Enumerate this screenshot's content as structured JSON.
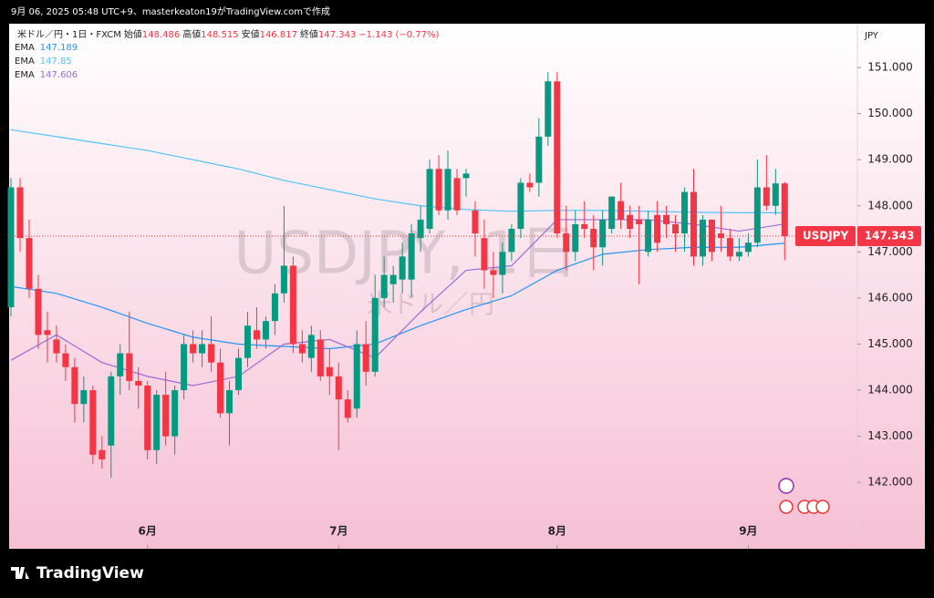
{
  "chart_data": {
    "type": "candlestick",
    "credit": "9月 06, 2025 05:48 UTC+9、masterkeaton19がTradingView.comで作成",
    "brand": "TradingView",
    "axis_unit": "JPY",
    "watermark": "USDJPY, 1日",
    "watermark_sub": "米ドル／円",
    "symbol_tag": "USDJPY",
    "legend": {
      "symbol": "米ドル／円・1日・FXCM",
      "fields": [
        {
          "label": "始値",
          "value": 148.486
        },
        {
          "label": "高値",
          "value": 148.515
        },
        {
          "label": "安値",
          "value": 146.817
        },
        {
          "label": "終値",
          "value": 147.343
        }
      ],
      "change": "−1.143 (−0.77%)"
    },
    "up_color": "#089981",
    "down_color": "#f23645",
    "open": [
      145.8,
      148.4,
      147.3,
      146.2,
      145.3,
      145.1,
      144.8,
      144.5,
      143.7,
      144.0,
      142.7,
      142.8,
      144.3,
      144.8,
      144.2,
      144.1,
      142.7,
      143.9,
      143.0,
      144.0,
      145.0,
      144.8,
      145.0,
      144.6,
      143.5,
      144.0,
      144.7,
      145.3,
      145.1,
      145.5,
      146.1,
      146.7,
      145.0,
      144.7,
      145.1,
      144.5,
      144.3,
      143.8,
      143.6,
      145.0,
      144.4,
      146.0,
      146.3,
      146.4,
      146.4,
      147.3,
      147.5,
      148.8,
      147.9,
      148.6,
      148.6,
      147.9,
      147.3,
      146.6,
      146.5,
      147.0,
      147.5,
      148.5,
      148.5,
      149.5,
      150.7,
      147.4,
      147.0,
      147.6,
      147.5,
      147.1,
      147.5,
      148.1,
      147.8,
      147.7,
      147.0,
      147.8,
      147.8,
      147.6,
      147.4,
      148.3,
      146.9,
      147.7,
      147.4,
      147.3,
      146.9,
      147.0,
      147.2,
      148.4,
      148.0,
      148.486
    ],
    "high": [
      148.6,
      148.6,
      147.7,
      146.5,
      145.7,
      145.4,
      145.0,
      144.7,
      144.3,
      144.1,
      143.0,
      144.4,
      145.0,
      145.7,
      144.5,
      144.2,
      144.0,
      144.4,
      144.1,
      145.2,
      145.3,
      145.3,
      145.6,
      144.9,
      144.2,
      144.9,
      145.7,
      145.8,
      145.6,
      146.3,
      148.0,
      146.9,
      145.3,
      145.4,
      145.3,
      144.9,
      144.6,
      144.0,
      145.3,
      145.5,
      146.5,
      146.9,
      146.7,
      147.2,
      147.6,
      148.0,
      149.0,
      149.1,
      149.2,
      148.8,
      148.8,
      148.1,
      147.7,
      147.0,
      147.2,
      147.6,
      148.6,
      148.7,
      149.9,
      150.9,
      150.9,
      148.0,
      147.9,
      148.1,
      147.8,
      147.9,
      148.2,
      148.5,
      148.0,
      148.0,
      147.9,
      148.1,
      148.0,
      147.8,
      148.4,
      148.8,
      147.8,
      147.7,
      148.0,
      147.5,
      147.3,
      147.4,
      149.0,
      149.1,
      148.8,
      148.515
    ],
    "low": [
      145.6,
      147.0,
      146.0,
      144.9,
      144.6,
      144.6,
      144.2,
      143.3,
      143.3,
      142.4,
      142.3,
      142.1,
      143.9,
      144.0,
      143.6,
      142.5,
      142.4,
      142.8,
      142.6,
      143.8,
      144.6,
      144.5,
      144.4,
      143.4,
      142.8,
      143.9,
      144.5,
      144.9,
      144.9,
      145.2,
      145.9,
      144.8,
      144.6,
      144.4,
      144.2,
      143.9,
      142.7,
      143.3,
      143.4,
      144.1,
      144.3,
      145.8,
      145.9,
      146.1,
      146.0,
      147.0,
      147.4,
      147.8,
      147.7,
      147.8,
      148.2,
      146.9,
      146.2,
      146.0,
      146.1,
      146.8,
      147.3,
      148.3,
      148.2,
      149.3,
      147.3,
      146.6,
      146.8,
      147.3,
      146.6,
      146.7,
      147.4,
      147.5,
      147.3,
      146.3,
      146.9,
      147.0,
      147.3,
      147.0,
      147.0,
      146.7,
      146.7,
      146.8,
      147.0,
      146.8,
      146.8,
      146.9,
      147.1,
      147.9,
      147.8,
      146.817
    ],
    "close": [
      148.4,
      147.3,
      146.2,
      145.2,
      145.2,
      144.8,
      144.5,
      143.7,
      144.0,
      142.6,
      142.5,
      144.3,
      144.8,
      144.2,
      144.1,
      142.7,
      143.9,
      143.0,
      144.0,
      145.0,
      144.8,
      145.0,
      144.6,
      143.5,
      144.0,
      144.7,
      145.4,
      145.1,
      145.5,
      146.1,
      146.7,
      145.0,
      144.8,
      145.2,
      144.3,
      144.3,
      143.8,
      143.4,
      145.0,
      144.4,
      146.0,
      146.5,
      146.5,
      146.9,
      147.4,
      147.7,
      148.8,
      147.9,
      148.8,
      147.9,
      148.7,
      147.4,
      146.6,
      146.5,
      147.0,
      147.5,
      148.5,
      148.4,
      149.5,
      150.7,
      147.4,
      147.0,
      147.6,
      147.5,
      147.1,
      147.7,
      148.2,
      147.7,
      147.5,
      147.6,
      147.7,
      147.2,
      147.6,
      147.4,
      148.3,
      146.9,
      147.7,
      147.0,
      147.3,
      146.9,
      147.0,
      147.2,
      148.4,
      148.0,
      148.486,
      147.343
    ],
    "emas": [
      {
        "name": "EMA",
        "color": "#2196f3",
        "x": [
          0,
          5,
          10,
          15,
          20,
          25,
          30,
          35,
          40,
          45,
          50,
          55,
          60,
          65,
          70,
          75,
          80,
          85
        ],
        "values": [
          146.25,
          146.1,
          145.8,
          145.45,
          145.15,
          145.0,
          144.95,
          144.9,
          145.0,
          145.4,
          145.75,
          146.05,
          146.6,
          146.95,
          147.05,
          147.1,
          147.1,
          147.189
        ]
      },
      {
        "name": "EMA",
        "color": "#4fc3f7",
        "x": [
          0,
          5,
          10,
          15,
          20,
          25,
          30,
          35,
          40,
          45,
          50,
          55,
          60,
          65,
          70,
          75,
          80,
          85
        ],
        "values": [
          149.65,
          149.5,
          149.35,
          149.2,
          149.0,
          148.8,
          148.55,
          148.35,
          148.15,
          148.0,
          147.92,
          147.88,
          147.9,
          147.9,
          147.88,
          147.86,
          147.85,
          147.85
        ]
      },
      {
        "name": "EMA",
        "color": "#9c6bd6",
        "x": [
          0,
          5,
          10,
          15,
          20,
          25,
          30,
          35,
          40,
          45,
          50,
          55,
          60,
          65,
          70,
          75,
          80,
          85
        ],
        "values": [
          144.65,
          145.2,
          144.6,
          144.3,
          144.1,
          144.3,
          145.0,
          145.1,
          144.7,
          145.7,
          146.6,
          146.7,
          147.7,
          147.7,
          147.7,
          147.6,
          147.45,
          147.606
        ]
      }
    ],
    "ylim": [
      140.56,
      151.95
    ],
    "yticks": [
      {
        "value": 142,
        "label": "142.000"
      },
      {
        "value": 143,
        "label": "143.000"
      },
      {
        "value": 144,
        "label": "144.000"
      },
      {
        "value": 145,
        "label": "145.000"
      },
      {
        "value": 146,
        "label": "146.000"
      },
      {
        "value": 147,
        "label": "147.000"
      },
      {
        "value": 148,
        "label": "148.000"
      },
      {
        "value": 149,
        "label": "149.000"
      },
      {
        "value": 150,
        "label": "150.000"
      },
      {
        "value": 151,
        "label": "151.000"
      }
    ],
    "xticks": [
      {
        "value": 15,
        "label": "6月"
      },
      {
        "value": 36,
        "label": "7月"
      },
      {
        "value": 60,
        "label": "8月"
      },
      {
        "value": 81,
        "label": "9月"
      }
    ]
  }
}
